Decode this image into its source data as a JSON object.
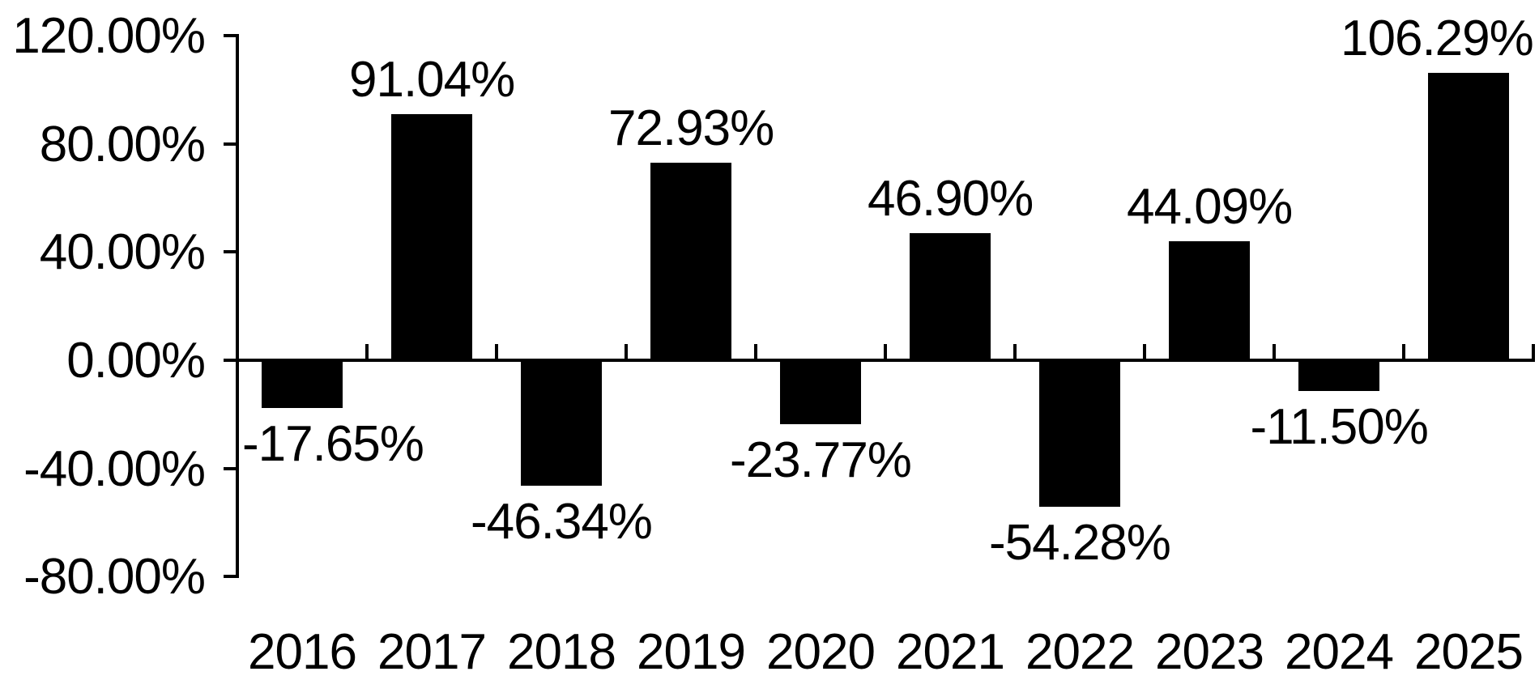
{
  "chart_data": {
    "type": "bar",
    "categories": [
      "2016",
      "2017",
      "2018",
      "2019",
      "2020",
      "2021",
      "2022",
      "2023",
      "2024",
      "2025"
    ],
    "values": [
      -17.65,
      91.04,
      -46.34,
      72.93,
      -23.77,
      46.9,
      -54.28,
      44.09,
      -11.5,
      106.29
    ],
    "data_labels": [
      "-17.65%",
      "91.04%",
      "-46.34%",
      "72.93%",
      "-23.77%",
      "46.90%",
      "-54.28%",
      "44.09%",
      "-11.50%",
      "106.29%"
    ],
    "y_axis": {
      "tick_labels": [
        "120.00%",
        "80.00%",
        "40.00%",
        "0.00%",
        "-40.00%",
        "-80.00%"
      ],
      "tick_values": [
        120,
        80,
        40,
        0,
        -40,
        -80
      ],
      "range": [
        -80,
        120
      ],
      "interval": 40,
      "format": "percent"
    },
    "x_axis": {
      "tick_labels": [
        "2016",
        "2017",
        "2018",
        "2019",
        "2020",
        "2021",
        "2022",
        "2023",
        "2024",
        "2025"
      ]
    },
    "grid": "off",
    "legend": "none",
    "colors": {
      "bar": "#000000",
      "axis": "#000000",
      "text": "#000000",
      "background": "#ffffff"
    }
  }
}
